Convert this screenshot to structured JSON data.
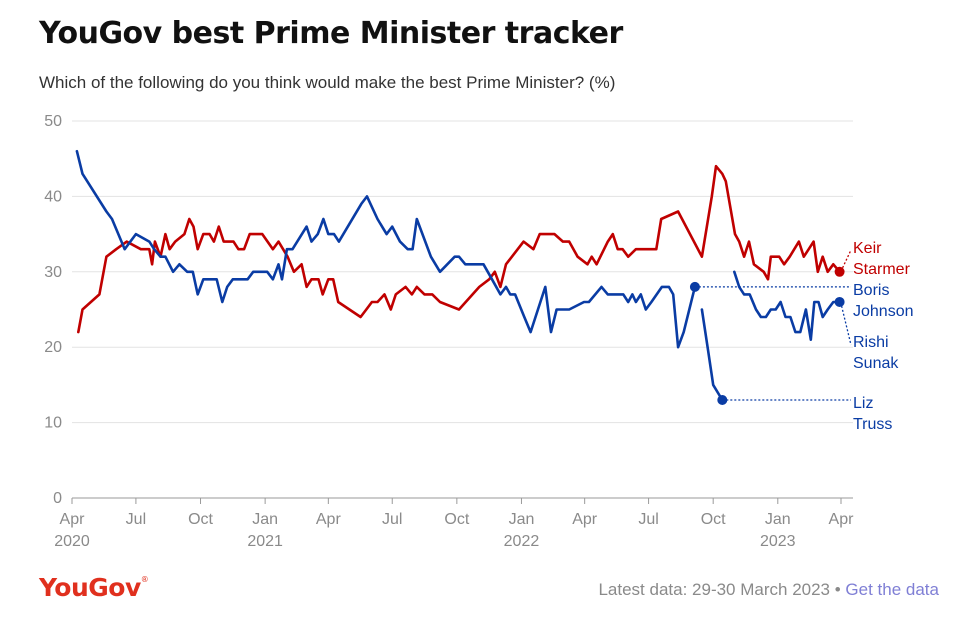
{
  "header": {
    "title": "YouGov best Prime Minister tracker",
    "subtitle": "Which of the following do you think would make the best Prime Minister? (%)"
  },
  "footer": {
    "logo": "YouGov",
    "logo_mark": "®",
    "latest_prefix": "Latest data: 29-30 March 2023 •",
    "link_label": "Get the data"
  },
  "colors": {
    "starmer": "#c00000",
    "conservative": "#0a3ca4",
    "grid": "#e3e3e3",
    "axis_text": "#8a8a8a",
    "logo": "#e0301e",
    "link": "#7f7fd5"
  },
  "chart_data": {
    "type": "line",
    "xlabel": "",
    "ylabel": "",
    "ylim": [
      0,
      50
    ],
    "yticks": [
      0,
      10,
      20,
      30,
      40,
      50
    ],
    "xlim": [
      "2020-04-01",
      "2023-04-01"
    ],
    "xticks": [
      {
        "date": "2020-04-01",
        "label": "Apr",
        "year": "2020"
      },
      {
        "date": "2020-07-01",
        "label": "Jul",
        "year": ""
      },
      {
        "date": "2020-10-01",
        "label": "Oct",
        "year": ""
      },
      {
        "date": "2021-01-01",
        "label": "Jan",
        "year": "2021"
      },
      {
        "date": "2021-04-01",
        "label": "Apr",
        "year": ""
      },
      {
        "date": "2021-07-01",
        "label": "Jul",
        "year": ""
      },
      {
        "date": "2021-10-01",
        "label": "Oct",
        "year": ""
      },
      {
        "date": "2022-01-01",
        "label": "Jan",
        "year": "2022"
      },
      {
        "date": "2022-04-01",
        "label": "Apr",
        "year": ""
      },
      {
        "date": "2022-07-01",
        "label": "Jul",
        "year": ""
      },
      {
        "date": "2022-10-01",
        "label": "Oct",
        "year": ""
      },
      {
        "date": "2023-01-01",
        "label": "Jan",
        "year": "2023"
      },
      {
        "date": "2023-04-01",
        "label": "Apr",
        "year": ""
      }
    ],
    "grid": true,
    "legend": "direct labels at right",
    "series": [
      {
        "name": "Keir Starmer",
        "label_lines": [
          "Keir",
          "Starmer"
        ],
        "color_key": "starmer",
        "end_value": 30,
        "points": [
          [
            "2020-04-10",
            22
          ],
          [
            "2020-04-16",
            25
          ],
          [
            "2020-05-10",
            27
          ],
          [
            "2020-05-20",
            32
          ],
          [
            "2020-06-03",
            33
          ],
          [
            "2020-06-18",
            34
          ],
          [
            "2020-07-08",
            33
          ],
          [
            "2020-07-20",
            33
          ],
          [
            "2020-07-24",
            31
          ],
          [
            "2020-07-28",
            34
          ],
          [
            "2020-08-05",
            32
          ],
          [
            "2020-08-12",
            35
          ],
          [
            "2020-08-18",
            33
          ],
          [
            "2020-08-26",
            34
          ],
          [
            "2020-09-08",
            35
          ],
          [
            "2020-09-15",
            37
          ],
          [
            "2020-09-21",
            36
          ],
          [
            "2020-09-27",
            33
          ],
          [
            "2020-10-05",
            35
          ],
          [
            "2020-10-14",
            35
          ],
          [
            "2020-10-20",
            34
          ],
          [
            "2020-10-27",
            36
          ],
          [
            "2020-11-03",
            34
          ],
          [
            "2020-11-17",
            34
          ],
          [
            "2020-11-24",
            33
          ],
          [
            "2020-12-02",
            33
          ],
          [
            "2020-12-10",
            35
          ],
          [
            "2020-12-28",
            35
          ],
          [
            "2021-01-12",
            33
          ],
          [
            "2021-01-20",
            34
          ],
          [
            "2021-02-02",
            32
          ],
          [
            "2021-02-11",
            30
          ],
          [
            "2021-02-22",
            31
          ],
          [
            "2021-03-01",
            28
          ],
          [
            "2021-03-08",
            29
          ],
          [
            "2021-03-18",
            29
          ],
          [
            "2021-03-24",
            27
          ],
          [
            "2021-04-01",
            29
          ],
          [
            "2021-04-08",
            29
          ],
          [
            "2021-04-15",
            26
          ],
          [
            "2021-05-17",
            24
          ],
          [
            "2021-05-25",
            25
          ],
          [
            "2021-06-02",
            26
          ],
          [
            "2021-06-10",
            26
          ],
          [
            "2021-06-20",
            27
          ],
          [
            "2021-06-29",
            25
          ],
          [
            "2021-07-06",
            27
          ],
          [
            "2021-07-20",
            28
          ],
          [
            "2021-07-29",
            27
          ],
          [
            "2021-08-05",
            28
          ],
          [
            "2021-08-16",
            27
          ],
          [
            "2021-08-27",
            27
          ],
          [
            "2021-09-07",
            26
          ],
          [
            "2021-10-04",
            25
          ],
          [
            "2021-11-02",
            28
          ],
          [
            "2021-11-16",
            29
          ],
          [
            "2021-11-24",
            30
          ],
          [
            "2021-12-02",
            28
          ],
          [
            "2021-12-10",
            31
          ],
          [
            "2022-01-04",
            34
          ],
          [
            "2022-01-18",
            33
          ],
          [
            "2022-01-27",
            35
          ],
          [
            "2022-02-17",
            35
          ],
          [
            "2022-03-01",
            34
          ],
          [
            "2022-03-10",
            34
          ],
          [
            "2022-03-22",
            32
          ],
          [
            "2022-04-05",
            31
          ],
          [
            "2022-04-11",
            32
          ],
          [
            "2022-04-18",
            31
          ],
          [
            "2022-05-04",
            34
          ],
          [
            "2022-05-11",
            35
          ],
          [
            "2022-05-18",
            33
          ],
          [
            "2022-05-25",
            33
          ],
          [
            "2022-06-02",
            32
          ],
          [
            "2022-06-13",
            33
          ],
          [
            "2022-07-12",
            33
          ],
          [
            "2022-07-19",
            37
          ],
          [
            "2022-08-12",
            38
          ],
          [
            "2022-09-15",
            32
          ],
          [
            "2022-09-29",
            40
          ],
          [
            "2022-10-05",
            44
          ],
          [
            "2022-10-14",
            43
          ],
          [
            "2022-10-19",
            42
          ],
          [
            "2022-11-01",
            35
          ],
          [
            "2022-11-07",
            34
          ],
          [
            "2022-11-14",
            32
          ],
          [
            "2022-11-21",
            34
          ],
          [
            "2022-11-28",
            31
          ],
          [
            "2022-12-12",
            30
          ],
          [
            "2022-12-18",
            29
          ],
          [
            "2022-12-22",
            32
          ],
          [
            "2023-01-03",
            32
          ],
          [
            "2023-01-10",
            31
          ],
          [
            "2023-01-18",
            32
          ],
          [
            "2023-01-31",
            34
          ],
          [
            "2023-02-07",
            32
          ],
          [
            "2023-02-14",
            33
          ],
          [
            "2023-02-21",
            34
          ],
          [
            "2023-02-27",
            30
          ],
          [
            "2023-03-06",
            32
          ],
          [
            "2023-03-13",
            30
          ],
          [
            "2023-03-21",
            31
          ],
          [
            "2023-03-30",
            30
          ]
        ]
      },
      {
        "name": "Boris Johnson",
        "label_lines": [
          "Boris",
          "Johnson"
        ],
        "color_key": "conservative",
        "end_value": 28,
        "points": [
          [
            "2020-04-08",
            46
          ],
          [
            "2020-04-16",
            43
          ],
          [
            "2020-05-20",
            38
          ],
          [
            "2020-05-28",
            37
          ],
          [
            "2020-06-15",
            33
          ],
          [
            "2020-07-01",
            35
          ],
          [
            "2020-07-20",
            34
          ],
          [
            "2020-07-27",
            33
          ],
          [
            "2020-08-05",
            32
          ],
          [
            "2020-08-12",
            32
          ],
          [
            "2020-08-23",
            30
          ],
          [
            "2020-09-01",
            31
          ],
          [
            "2020-09-12",
            30
          ],
          [
            "2020-09-20",
            30
          ],
          [
            "2020-09-27",
            27
          ],
          [
            "2020-10-05",
            29
          ],
          [
            "2020-10-24",
            29
          ],
          [
            "2020-11-01",
            26
          ],
          [
            "2020-11-08",
            28
          ],
          [
            "2020-11-16",
            29
          ],
          [
            "2020-12-07",
            29
          ],
          [
            "2020-12-15",
            30
          ],
          [
            "2021-01-04",
            30
          ],
          [
            "2021-01-12",
            29
          ],
          [
            "2021-01-20",
            31
          ],
          [
            "2021-01-25",
            29
          ],
          [
            "2021-02-01",
            33
          ],
          [
            "2021-02-09",
            33
          ],
          [
            "2021-03-01",
            36
          ],
          [
            "2021-03-08",
            34
          ],
          [
            "2021-03-17",
            35
          ],
          [
            "2021-03-25",
            37
          ],
          [
            "2021-04-01",
            35
          ],
          [
            "2021-04-09",
            35
          ],
          [
            "2021-04-16",
            34
          ],
          [
            "2021-05-18",
            39
          ],
          [
            "2021-05-26",
            40
          ],
          [
            "2021-06-10",
            37
          ],
          [
            "2021-06-23",
            35
          ],
          [
            "2021-07-01",
            36
          ],
          [
            "2021-07-12",
            34
          ],
          [
            "2021-07-23",
            33
          ],
          [
            "2021-07-30",
            33
          ],
          [
            "2021-08-05",
            37
          ],
          [
            "2021-08-25",
            32
          ],
          [
            "2021-09-07",
            30
          ],
          [
            "2021-09-28",
            32
          ],
          [
            "2021-10-04",
            32
          ],
          [
            "2021-10-13",
            31
          ],
          [
            "2021-11-08",
            31
          ],
          [
            "2021-11-20",
            29
          ],
          [
            "2021-12-02",
            27
          ],
          [
            "2021-12-10",
            28
          ],
          [
            "2021-12-16",
            27
          ],
          [
            "2021-12-23",
            27
          ],
          [
            "2022-01-05",
            24
          ],
          [
            "2022-01-14",
            22
          ],
          [
            "2022-02-04",
            28
          ],
          [
            "2022-02-12",
            22
          ],
          [
            "2022-02-20",
            25
          ],
          [
            "2022-03-02",
            25
          ],
          [
            "2022-03-10",
            25
          ],
          [
            "2022-03-31",
            26
          ],
          [
            "2022-04-07",
            26
          ],
          [
            "2022-04-25",
            28
          ],
          [
            "2022-05-04",
            27
          ],
          [
            "2022-05-26",
            27
          ],
          [
            "2022-06-02",
            26
          ],
          [
            "2022-06-08",
            27
          ],
          [
            "2022-06-13",
            26
          ],
          [
            "2022-06-20",
            27
          ],
          [
            "2022-06-27",
            25
          ],
          [
            "2022-07-05",
            26
          ],
          [
            "2022-07-20",
            28
          ],
          [
            "2022-07-30",
            28
          ],
          [
            "2022-08-05",
            27
          ],
          [
            "2022-08-12",
            20
          ],
          [
            "2022-08-20",
            22
          ],
          [
            "2022-09-05",
            28
          ]
        ]
      },
      {
        "name": "Liz Truss",
        "label_lines": [
          "Liz",
          "Truss"
        ],
        "color_key": "conservative",
        "end_value": 13,
        "points": [
          [
            "2022-09-15",
            25
          ],
          [
            "2022-09-23",
            20
          ],
          [
            "2022-10-01",
            15
          ],
          [
            "2022-10-14",
            13
          ]
        ]
      },
      {
        "name": "Rishi Sunak",
        "label_lines": [
          "Rishi",
          "Sunak"
        ],
        "color_key": "conservative",
        "end_value": 26,
        "points": [
          [
            "2022-10-31",
            30
          ],
          [
            "2022-11-07",
            28
          ],
          [
            "2022-11-14",
            27
          ],
          [
            "2022-11-22",
            27
          ],
          [
            "2022-12-01",
            25
          ],
          [
            "2022-12-08",
            24
          ],
          [
            "2022-12-15",
            24
          ],
          [
            "2022-12-22",
            25
          ],
          [
            "2022-12-29",
            25
          ],
          [
            "2023-01-05",
            26
          ],
          [
            "2023-01-12",
            24
          ],
          [
            "2023-01-19",
            24
          ],
          [
            "2023-01-26",
            22
          ],
          [
            "2023-02-02",
            22
          ],
          [
            "2023-02-10",
            25
          ],
          [
            "2023-02-17",
            21
          ],
          [
            "2023-02-22",
            26
          ],
          [
            "2023-02-28",
            26
          ],
          [
            "2023-03-06",
            24
          ],
          [
            "2023-03-13",
            25
          ],
          [
            "2023-03-21",
            26
          ],
          [
            "2023-03-30",
            26
          ]
        ]
      }
    ],
    "end_markers": [
      {
        "series": "Keir Starmer",
        "date": "2023-03-30",
        "value": 30
      },
      {
        "series": "Rishi Sunak",
        "date": "2023-03-30",
        "value": 26
      },
      {
        "series": "Boris Johnson",
        "date": "2022-09-05",
        "value": 28
      },
      {
        "series": "Liz Truss",
        "date": "2022-10-14",
        "value": 13
      }
    ]
  }
}
